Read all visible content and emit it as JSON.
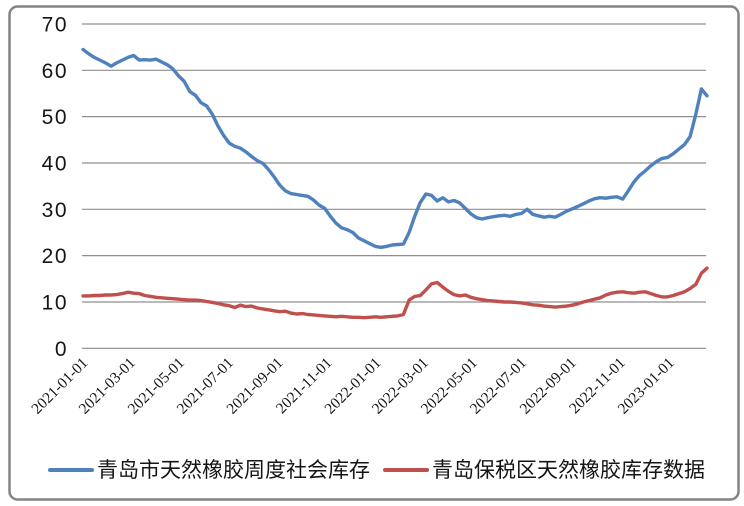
{
  "chart_data": {
    "type": "line",
    "title": "",
    "frequency": "weekly",
    "grid": true,
    "legend_position": "bottom",
    "y_axis": {
      "min": 0,
      "max": 70,
      "step": 10,
      "tick_labels": [
        "0",
        "10",
        "20",
        "30",
        "40",
        "50",
        "60",
        "70"
      ]
    },
    "x_axis": {
      "ticks": [
        {
          "label": "2021-01-01",
          "week": 0
        },
        {
          "label": "2021-03-01",
          "week": 8.43
        },
        {
          "label": "2021-05-01",
          "week": 17.14
        },
        {
          "label": "2021-07-01",
          "week": 25.86
        },
        {
          "label": "2021-09-01",
          "week": 34.71
        },
        {
          "label": "2021-11-01",
          "week": 43.43
        },
        {
          "label": "2022-01-01",
          "week": 52.14
        },
        {
          "label": "2022-03-01",
          "week": 60.57
        },
        {
          "label": "2022-05-01",
          "week": 69.29
        },
        {
          "label": "2022-07-01",
          "week": 78.0
        },
        {
          "label": "2022-09-01",
          "week": 86.86
        },
        {
          "label": "2022-11-01",
          "week": 95.57
        },
        {
          "label": "2023-01-01",
          "week": 104.29
        }
      ]
    },
    "series": [
      {
        "name": "青岛市天然橡胶周度社会库存",
        "color": "#4F81BD",
        "values": [
          64.5,
          63.6,
          62.8,
          62.2,
          61.6,
          60.9,
          61.6,
          62.2,
          62.8,
          63.2,
          62.2,
          62.3,
          62.2,
          62.4,
          61.8,
          61.2,
          60.3,
          58.8,
          57.6,
          55.4,
          54.6,
          53.0,
          52.3,
          50.5,
          48.0,
          46.0,
          44.3,
          43.6,
          43.2,
          42.4,
          41.4,
          40.5,
          39.9,
          38.6,
          37.0,
          35.2,
          34.0,
          33.4,
          33.2,
          33.0,
          32.8,
          32.0,
          30.9,
          30.2,
          28.5,
          27.0,
          26.0,
          25.6,
          25.0,
          23.8,
          23.2,
          22.6,
          22.0,
          21.8,
          22.0,
          22.3,
          22.4,
          22.5,
          25.0,
          28.5,
          31.5,
          33.3,
          33.0,
          31.8,
          32.5,
          31.6,
          31.9,
          31.4,
          30.2,
          29.0,
          28.2,
          27.9,
          28.2,
          28.4,
          28.6,
          28.7,
          28.5,
          28.9,
          29.1,
          30.0,
          28.9,
          28.6,
          28.3,
          28.5,
          28.3,
          28.9,
          29.6,
          30.1,
          30.6,
          31.2,
          31.8,
          32.3,
          32.5,
          32.4,
          32.6,
          32.7,
          32.2,
          34.0,
          35.9,
          37.3,
          38.3,
          39.4,
          40.3,
          41.0,
          41.2,
          42.0,
          43.0,
          44.0,
          45.7,
          50.5,
          56.0,
          54.5
        ]
      },
      {
        "name": "青岛保税区天然橡胶库存数据",
        "color": "#C0504D",
        "values": [
          11.3,
          11.3,
          11.4,
          11.4,
          11.5,
          11.5,
          11.6,
          11.8,
          12.1,
          11.9,
          11.8,
          11.4,
          11.2,
          11.0,
          10.9,
          10.8,
          10.7,
          10.6,
          10.5,
          10.4,
          10.4,
          10.3,
          10.1,
          9.9,
          9.7,
          9.4,
          9.2,
          8.8,
          9.3,
          9.0,
          9.1,
          8.7,
          8.5,
          8.3,
          8.1,
          7.9,
          8.0,
          7.6,
          7.4,
          7.5,
          7.3,
          7.2,
          7.1,
          7.0,
          6.9,
          6.8,
          6.9,
          6.8,
          6.7,
          6.7,
          6.6,
          6.7,
          6.8,
          6.7,
          6.8,
          6.9,
          7.0,
          7.3,
          10.4,
          11.2,
          11.4,
          12.6,
          13.9,
          14.2,
          13.2,
          12.3,
          11.6,
          11.3,
          11.5,
          11.0,
          10.7,
          10.5,
          10.3,
          10.2,
          10.1,
          10.0,
          10.0,
          9.9,
          9.8,
          9.6,
          9.4,
          9.3,
          9.1,
          9.0,
          8.9,
          9.0,
          9.1,
          9.3,
          9.6,
          10.0,
          10.3,
          10.6,
          10.9,
          11.5,
          11.9,
          12.1,
          12.2,
          12.0,
          11.9,
          12.1,
          12.2,
          11.8,
          11.4,
          11.1,
          11.1,
          11.4,
          11.8,
          12.2,
          12.9,
          13.8,
          16.2,
          17.3
        ]
      }
    ]
  },
  "colors": {
    "gridline": "#8f8f8f",
    "frame": "#848484",
    "text": "#151515"
  }
}
